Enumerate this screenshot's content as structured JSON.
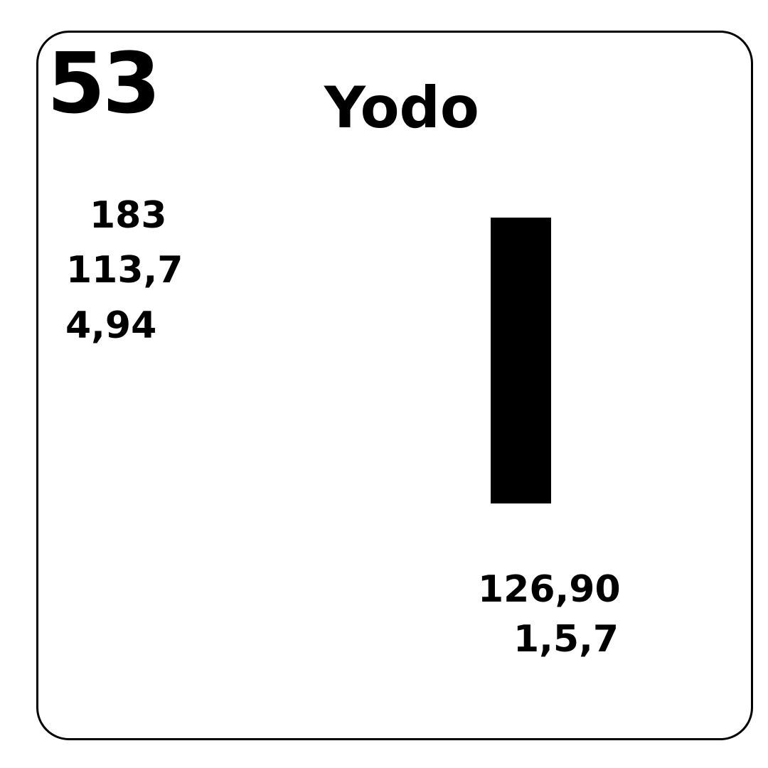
{
  "element": {
    "atomic_number": "53",
    "name": "Yodo",
    "symbol": "I",
    "boiling_point": "183",
    "melting_point": "113,7",
    "density": "4,94",
    "atomic_mass": "126,90",
    "oxidation_states": "1,5,7"
  },
  "colors": {
    "ink": "#000000",
    "background": "#ffffff"
  }
}
